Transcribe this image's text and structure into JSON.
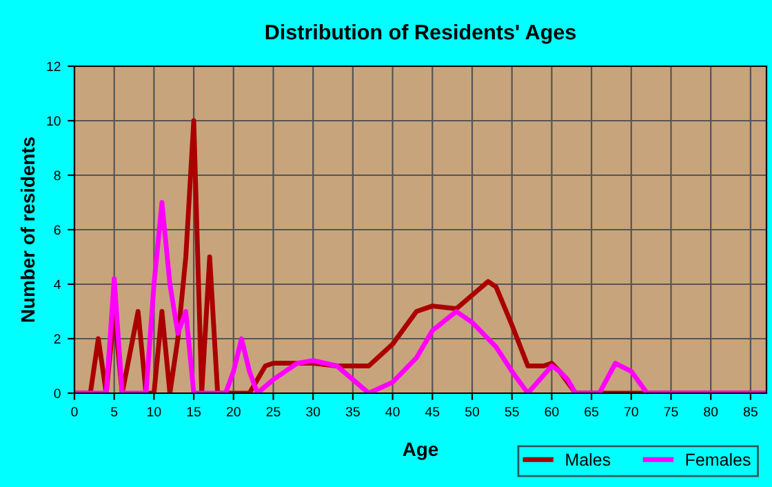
{
  "chart_data": {
    "type": "line",
    "title": "Distribution of Residents' Ages",
    "xlabel": "Age",
    "ylabel": "Number of residents",
    "xlim": [
      0,
      87
    ],
    "xticks": [
      0,
      5,
      10,
      15,
      20,
      25,
      30,
      35,
      40,
      45,
      50,
      55,
      60,
      65,
      70,
      75,
      80,
      85
    ],
    "ylim": [
      0,
      12
    ],
    "yticks": [
      0,
      2,
      4,
      6,
      8,
      10,
      12
    ],
    "grid": true,
    "legend": "bottom right",
    "marker": "none",
    "line_style": "solid",
    "series": [
      {
        "name": "Males",
        "color": "#aa0000",
        "x": [
          0,
          2,
          3,
          4,
          5,
          6,
          7,
          8,
          9,
          10,
          11,
          12,
          13,
          14,
          15,
          16,
          17,
          18,
          20,
          22,
          24,
          25,
          30,
          33,
          35,
          37,
          40,
          43,
          45,
          48,
          50,
          52,
          53,
          55,
          57,
          59,
          60,
          61,
          63,
          65,
          87
        ],
        "values": [
          0,
          0,
          2,
          0,
          3,
          0,
          1.5,
          3,
          0,
          0,
          3,
          0,
          2,
          5,
          10,
          0,
          5,
          0,
          0,
          0,
          1,
          1.1,
          1.1,
          1.0,
          1,
          1,
          1.8,
          3,
          3.2,
          3.1,
          3.6,
          4.1,
          3.9,
          2.5,
          1,
          1,
          1.1,
          0.8,
          0,
          0,
          0
        ]
      },
      {
        "name": "Females",
        "color": "#ff00ff",
        "x": [
          0,
          4,
          5,
          6,
          9,
          10,
          11,
          12,
          13,
          14,
          15,
          19,
          20,
          21,
          22,
          23,
          25,
          28,
          30,
          33,
          35,
          37,
          40,
          43,
          45,
          48,
          50,
          53,
          55,
          57,
          60,
          61,
          62,
          63,
          66,
          68,
          70,
          72,
          87
        ],
        "values": [
          0,
          0,
          4.2,
          0,
          0,
          4,
          7,
          4,
          2.2,
          3,
          0,
          0,
          0.8,
          2,
          0.8,
          0,
          0.5,
          1.1,
          1.2,
          1.0,
          0.5,
          0,
          0.4,
          1.3,
          2.3,
          3.0,
          2.6,
          1.7,
          0.8,
          0,
          1,
          0.8,
          0.5,
          0,
          0,
          1.1,
          0.8,
          0,
          0
        ]
      }
    ]
  }
}
